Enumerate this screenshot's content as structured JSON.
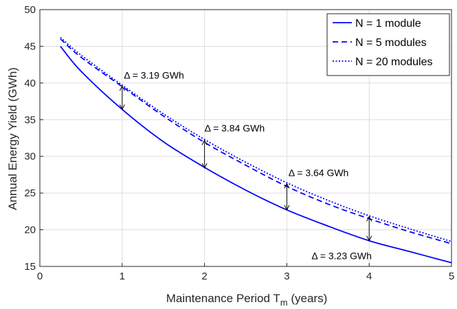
{
  "chart_data": {
    "type": "line",
    "title": "",
    "xlabel": "Maintenance Period T",
    "xlabel_sub": "m",
    "xlabel_suffix": " (years)",
    "ylabel": "Annual Energy Yield (GWh)",
    "xlim": [
      0,
      5
    ],
    "ylim": [
      15,
      50
    ],
    "xticks": [
      0,
      1,
      2,
      3,
      4,
      5
    ],
    "yticks": [
      15,
      20,
      25,
      30,
      35,
      40,
      45,
      50
    ],
    "grid": true,
    "legend_position": "top-right",
    "x": [
      0.25,
      0.5,
      1.0,
      1.5,
      2.0,
      2.5,
      3.0,
      3.5,
      4.0,
      4.5,
      5.0
    ],
    "series": [
      {
        "name": "N = 1 module",
        "style": "solid",
        "color": "#0000ff",
        "values": [
          45.0,
          41.6,
          36.4,
          32.0,
          28.5,
          25.4,
          22.7,
          20.5,
          18.5,
          17.0,
          15.5
        ]
      },
      {
        "name": "N = 5 modules",
        "style": "dashed",
        "color": "#0000ff",
        "values": [
          46.0,
          43.5,
          39.5,
          35.5,
          31.9,
          28.8,
          25.9,
          23.5,
          21.5,
          19.7,
          18.1
        ]
      },
      {
        "name": "N = 20 modules",
        "style": "dotted",
        "color": "#0000ff",
        "values": [
          46.2,
          43.8,
          39.7,
          35.8,
          32.3,
          29.2,
          26.4,
          24.0,
          21.9,
          20.1,
          18.4
        ]
      }
    ],
    "annotations": [
      {
        "label": "Δ = 3.19 GWh",
        "x": 1,
        "y_low": 36.4,
        "y_high": 39.6,
        "text_x": 1.02,
        "text_y": 40.6
      },
      {
        "label": "Δ = 3.84 GWh",
        "x": 2,
        "y_low": 28.4,
        "y_high": 32.2,
        "text_x": 2.0,
        "text_y": 33.4
      },
      {
        "label": "Δ = 3.64 GWh",
        "x": 3,
        "y_low": 22.7,
        "y_high": 26.3,
        "text_x": 3.02,
        "text_y": 27.3
      },
      {
        "label": "Δ = 3.23 GWh",
        "x": 4,
        "y_low": 18.5,
        "y_high": 21.8,
        "text_x": 3.3,
        "text_y": 16.0
      }
    ]
  }
}
